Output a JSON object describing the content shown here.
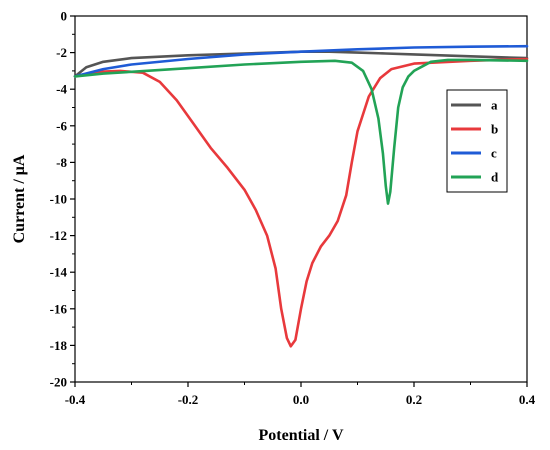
{
  "chart_data": {
    "type": "line",
    "title": "",
    "xlabel": "Potential / V",
    "ylabel": "Current / μA",
    "xlim": [
      -0.4,
      0.4
    ],
    "ylim": [
      -20,
      0
    ],
    "x_ticks": [
      "-0.4",
      "-0.2",
      "0.0",
      "0.2",
      "0.4"
    ],
    "y_ticks": [
      "0",
      "-2",
      "-4",
      "-6",
      "-8",
      "-10",
      "-12",
      "-14",
      "-16",
      "-18",
      "-20"
    ],
    "grid": false,
    "legend_position": "right",
    "series": [
      {
        "name": "a",
        "color": "#555555",
        "points": [
          [
            -0.4,
            -3.3
          ],
          [
            -0.38,
            -2.8
          ],
          [
            -0.35,
            -2.5
          ],
          [
            -0.3,
            -2.3
          ],
          [
            -0.2,
            -2.15
          ],
          [
            -0.1,
            -2.05
          ],
          [
            0.0,
            -1.95
          ],
          [
            0.05,
            -1.95
          ],
          [
            0.1,
            -2.0
          ],
          [
            0.15,
            -2.05
          ],
          [
            0.2,
            -2.1
          ],
          [
            0.3,
            -2.2
          ],
          [
            0.4,
            -2.3
          ]
        ]
      },
      {
        "name": "b",
        "color": "#e8393c",
        "points": [
          [
            -0.4,
            -3.3
          ],
          [
            -0.36,
            -3.05
          ],
          [
            -0.32,
            -3.0
          ],
          [
            -0.28,
            -3.1
          ],
          [
            -0.25,
            -3.6
          ],
          [
            -0.22,
            -4.6
          ],
          [
            -0.19,
            -5.9
          ],
          [
            -0.16,
            -7.2
          ],
          [
            -0.13,
            -8.3
          ],
          [
            -0.1,
            -9.5
          ],
          [
            -0.08,
            -10.6
          ],
          [
            -0.06,
            -12.0
          ],
          [
            -0.045,
            -13.8
          ],
          [
            -0.035,
            -16.0
          ],
          [
            -0.025,
            -17.6
          ],
          [
            -0.018,
            -18.05
          ],
          [
            -0.01,
            -17.7
          ],
          [
            0.0,
            -16.0
          ],
          [
            0.01,
            -14.5
          ],
          [
            0.02,
            -13.5
          ],
          [
            0.035,
            -12.6
          ],
          [
            0.05,
            -12.0
          ],
          [
            0.065,
            -11.2
          ],
          [
            0.08,
            -9.8
          ],
          [
            0.09,
            -8.0
          ],
          [
            0.1,
            -6.3
          ],
          [
            0.12,
            -4.4
          ],
          [
            0.14,
            -3.4
          ],
          [
            0.16,
            -2.9
          ],
          [
            0.2,
            -2.6
          ],
          [
            0.3,
            -2.45
          ],
          [
            0.4,
            -2.35
          ]
        ]
      },
      {
        "name": "c",
        "color": "#1f5bd6",
        "points": [
          [
            -0.4,
            -3.3
          ],
          [
            -0.35,
            -2.9
          ],
          [
            -0.3,
            -2.65
          ],
          [
            -0.2,
            -2.35
          ],
          [
            -0.1,
            -2.1
          ],
          [
            0.0,
            -1.95
          ],
          [
            0.1,
            -1.82
          ],
          [
            0.2,
            -1.72
          ],
          [
            0.3,
            -1.68
          ],
          [
            0.4,
            -1.65
          ]
        ]
      },
      {
        "name": "d",
        "color": "#22a356",
        "points": [
          [
            -0.4,
            -3.3
          ],
          [
            -0.35,
            -3.15
          ],
          [
            -0.3,
            -3.05
          ],
          [
            -0.2,
            -2.85
          ],
          [
            -0.1,
            -2.65
          ],
          [
            0.0,
            -2.5
          ],
          [
            0.06,
            -2.45
          ],
          [
            0.09,
            -2.55
          ],
          [
            0.11,
            -3.0
          ],
          [
            0.125,
            -4.0
          ],
          [
            0.137,
            -5.6
          ],
          [
            0.145,
            -7.5
          ],
          [
            0.15,
            -9.3
          ],
          [
            0.154,
            -10.25
          ],
          [
            0.158,
            -9.6
          ],
          [
            0.165,
            -7.2
          ],
          [
            0.172,
            -5.0
          ],
          [
            0.18,
            -3.9
          ],
          [
            0.19,
            -3.3
          ],
          [
            0.2,
            -3.0
          ],
          [
            0.215,
            -2.75
          ],
          [
            0.23,
            -2.5
          ],
          [
            0.26,
            -2.4
          ],
          [
            0.3,
            -2.4
          ],
          [
            0.4,
            -2.45
          ]
        ]
      }
    ]
  }
}
